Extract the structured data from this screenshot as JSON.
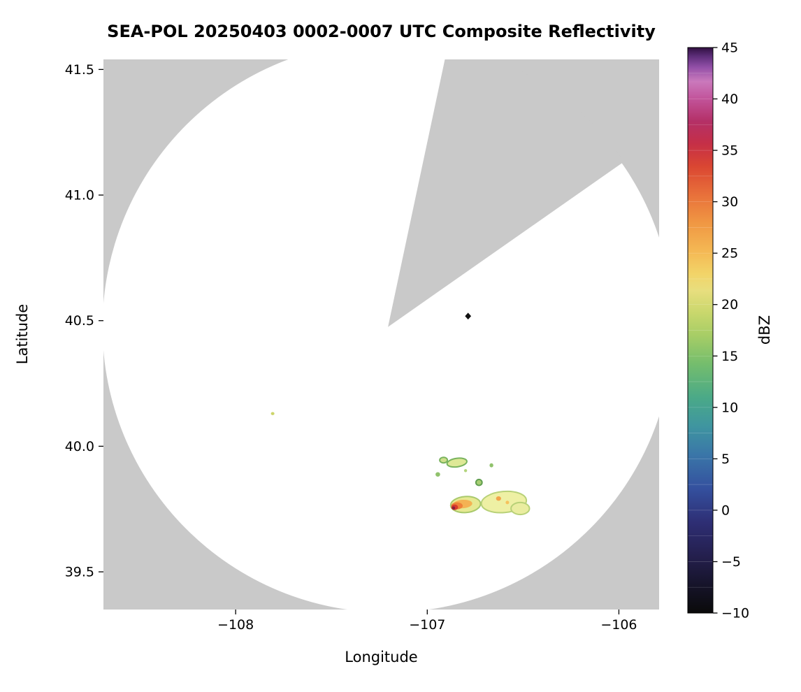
{
  "page": {
    "background_color": "#ffffff"
  },
  "chart_data": {
    "type": "radar_composite_reflectivity_map",
    "title": "SEA-POL 20250403 0002-0007 UTC Composite Reflectivity",
    "xlabel": "Longitude",
    "ylabel": "Latitude",
    "xlim": [
      -108.69,
      -105.79
    ],
    "ylim": [
      39.35,
      41.54
    ],
    "grid": false,
    "background_outside_range_color": "#c9c9c9",
    "background_inside_range_color": "#ffffff",
    "xticks": [
      {
        "value": -108,
        "label": "−108"
      },
      {
        "value": -107,
        "label": "−107"
      },
      {
        "value": -106,
        "label": "−106"
      }
    ],
    "yticks": [
      {
        "value": 39.5,
        "label": "39.5"
      },
      {
        "value": 40.0,
        "label": "40.0"
      },
      {
        "value": 40.5,
        "label": "40.5"
      },
      {
        "value": 41.0,
        "label": "41.0"
      },
      {
        "value": 41.5,
        "label": "41.5"
      }
    ],
    "radar_coverage": {
      "center_lon": -107.205,
      "center_lat": 40.475,
      "radius_lon_deg": 1.49,
      "blocked_sector": {
        "start_az_deg": 12,
        "end_az_deg": 55,
        "color": "#c9c9c9"
      }
    },
    "colorbar": {
      "label": "dBZ",
      "min": -10,
      "max": 45,
      "ticks": [
        {
          "value": 45,
          "label": "45"
        },
        {
          "value": 40,
          "label": "40"
        },
        {
          "value": 35,
          "label": "35"
        },
        {
          "value": 30,
          "label": "30"
        },
        {
          "value": 25,
          "label": "25"
        },
        {
          "value": 20,
          "label": "20"
        },
        {
          "value": 15,
          "label": "15"
        },
        {
          "value": 10,
          "label": "10"
        },
        {
          "value": 5,
          "label": "5"
        },
        {
          "value": 0,
          "label": "0"
        },
        {
          "value": -5,
          "label": "−5"
        },
        {
          "value": -10,
          "label": "−10"
        }
      ],
      "stops": [
        {
          "t": 0.0,
          "c": "#0a0a0a"
        },
        {
          "t": 0.05,
          "c": "#16142a"
        },
        {
          "t": 0.1,
          "c": "#241f4d"
        },
        {
          "t": 0.16,
          "c": "#2e2e74"
        },
        {
          "t": 0.22,
          "c": "#34509e"
        },
        {
          "t": 0.28,
          "c": "#3a76a8"
        },
        {
          "t": 0.33,
          "c": "#3f95a0"
        },
        {
          "t": 0.38,
          "c": "#4aa988"
        },
        {
          "t": 0.44,
          "c": "#74bd6d"
        },
        {
          "t": 0.49,
          "c": "#a6cd66"
        },
        {
          "t": 0.53,
          "c": "#c8d76c"
        },
        {
          "t": 0.57,
          "c": "#e8de7e"
        },
        {
          "t": 0.6,
          "c": "#f2d468"
        },
        {
          "t": 0.64,
          "c": "#f4b854"
        },
        {
          "t": 0.69,
          "c": "#f09743"
        },
        {
          "t": 0.74,
          "c": "#e8703a"
        },
        {
          "t": 0.79,
          "c": "#da4632"
        },
        {
          "t": 0.83,
          "c": "#c52f47"
        },
        {
          "t": 0.87,
          "c": "#b43067"
        },
        {
          "t": 0.91,
          "c": "#c2549b"
        },
        {
          "t": 0.94,
          "c": "#ca79bc"
        },
        {
          "t": 0.965,
          "c": "#9350a8"
        },
        {
          "t": 0.985,
          "c": "#5c2d78"
        },
        {
          "t": 1.0,
          "c": "#301040"
        }
      ]
    },
    "echoes": [
      {
        "name": "clutter-pixel",
        "shape": "diamond",
        "lon": -106.787,
        "lat": 40.518,
        "size_deg": 0.016,
        "fill": "#121212",
        "approx_dbz": -10
      },
      {
        "name": "isolated-speck",
        "shape": "ellipse",
        "lon": -107.807,
        "lat": 40.13,
        "rx": 0.009,
        "ry": 0.006,
        "rot": 0,
        "fill": "#ccd56a",
        "approx_dbz": 15
      },
      {
        "name": "north-cell",
        "shape": "ellipse",
        "lon": -106.845,
        "lat": 39.935,
        "rx": 0.052,
        "ry": 0.017,
        "rot": -8,
        "fill": "#dee896",
        "stroke": "#79b35e",
        "approx_dbz": 12
      },
      {
        "name": "north-cell",
        "shape": "ellipse",
        "lon": -106.915,
        "lat": 39.945,
        "rx": 0.02,
        "ry": 0.011,
        "rot": 0,
        "fill": "#cfe08c",
        "stroke": "#79b35e",
        "approx_dbz": 10
      },
      {
        "name": "north-cell",
        "shape": "ellipse",
        "lon": -106.945,
        "lat": 39.888,
        "rx": 0.012,
        "ry": 0.009,
        "rot": 0,
        "fill": "#90c26c",
        "approx_dbz": 8
      },
      {
        "name": "north-cell",
        "shape": "ellipse",
        "lon": -106.8,
        "lat": 39.903,
        "rx": 0.008,
        "ry": 0.006,
        "rot": 0,
        "fill": "#b2d47c",
        "approx_dbz": 8
      },
      {
        "name": "north-cell",
        "shape": "ellipse",
        "lon": -106.73,
        "lat": 39.856,
        "rx": 0.016,
        "ry": 0.012,
        "rot": 0,
        "fill": "#a8ce74",
        "stroke": "#619f50",
        "approx_dbz": 9
      },
      {
        "name": "north-cell",
        "shape": "ellipse",
        "lon": -106.665,
        "lat": 39.924,
        "rx": 0.01,
        "ry": 0.008,
        "rot": 0,
        "fill": "#90c26c",
        "approx_dbz": 8
      },
      {
        "name": "main-cluster-pale-east",
        "shape": "ellipse",
        "lon": -106.6,
        "lat": 39.778,
        "rx": 0.118,
        "ry": 0.042,
        "rot": -5,
        "fill": "#eef0a4",
        "stroke": "#b8d178",
        "approx_dbz": 15
      },
      {
        "name": "main-cluster-lobe",
        "shape": "ellipse",
        "lon": -106.515,
        "lat": 39.752,
        "rx": 0.048,
        "ry": 0.024,
        "rot": 0,
        "fill": "#eaeda0",
        "stroke": "#b8d178",
        "approx_dbz": 14
      },
      {
        "name": "main-cluster-west",
        "shape": "ellipse",
        "lon": -106.8,
        "lat": 39.768,
        "rx": 0.078,
        "ry": 0.032,
        "rot": -4,
        "fill": "#e6e992",
        "stroke": "#a9c96c",
        "approx_dbz": 16
      },
      {
        "name": "main-cluster-orange-band",
        "shape": "ellipse",
        "lon": -106.815,
        "lat": 39.77,
        "rx": 0.05,
        "ry": 0.017,
        "rot": -4,
        "fill": "#f4b253",
        "approx_dbz": 24
      },
      {
        "name": "main-cluster-orange-core",
        "shape": "ellipse",
        "lon": -106.845,
        "lat": 39.763,
        "rx": 0.03,
        "ry": 0.014,
        "rot": 0,
        "fill": "#ee8139",
        "approx_dbz": 27
      },
      {
        "name": "main-cluster-red-core",
        "shape": "ellipse",
        "lon": -106.857,
        "lat": 39.757,
        "rx": 0.018,
        "ry": 0.011,
        "rot": 0,
        "fill": "#d73c2d",
        "approx_dbz": 31
      },
      {
        "name": "main-cluster-max-core",
        "shape": "ellipse",
        "lon": -106.863,
        "lat": 39.754,
        "rx": 0.0085,
        "ry": 0.0065,
        "rot": 0,
        "fill": "#8e1e3c",
        "approx_dbz": 36
      },
      {
        "name": "orange-dot",
        "shape": "ellipse",
        "lon": -106.628,
        "lat": 39.792,
        "rx": 0.013,
        "ry": 0.009,
        "rot": 0,
        "fill": "#f2a44b",
        "approx_dbz": 25
      },
      {
        "name": "orange-dot",
        "shape": "ellipse",
        "lon": -106.582,
        "lat": 39.776,
        "rx": 0.009,
        "ry": 0.007,
        "rot": 0,
        "fill": "#f6c25c",
        "approx_dbz": 22
      }
    ]
  }
}
